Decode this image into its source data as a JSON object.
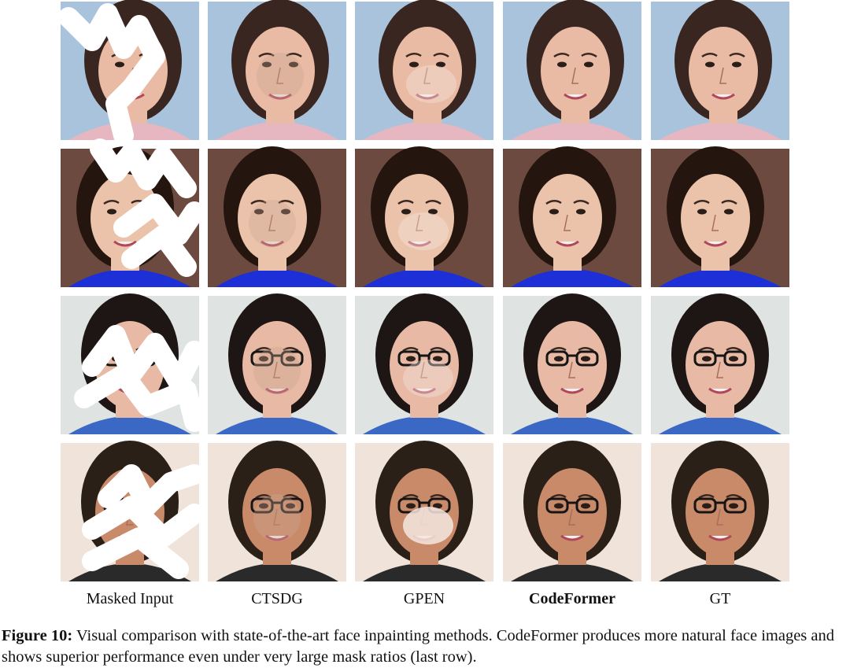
{
  "figure": {
    "columns": [
      "Masked Input",
      "CTSDG",
      "GPEN",
      "CodeFormer",
      "GT"
    ],
    "caption": {
      "label": "Figure 10:",
      "text": "Visual comparison with state-of-the-art face inpainting methods. CodeFormer produces more natural face images and shows superior performance even under very large mask ratios (last row)."
    }
  }
}
